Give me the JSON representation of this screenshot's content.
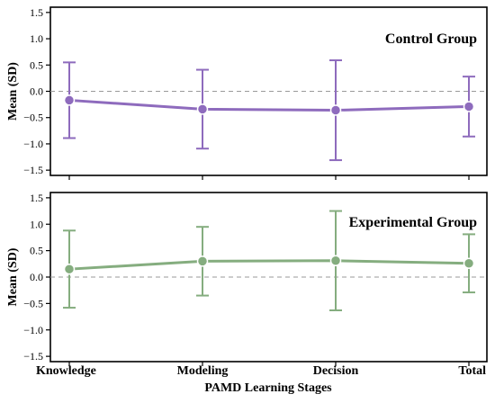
{
  "chart_data": [
    {
      "type": "line",
      "title": "Control Group",
      "ylabel": "Mean (SD)",
      "xlabel": "",
      "categories": [
        "Knowledge",
        "Modeling",
        "Decision",
        "Total"
      ],
      "ylim": [
        -1.6,
        1.6
      ],
      "yticks": [
        -1.5,
        -1.0,
        -0.5,
        0.0,
        0.5,
        1.0,
        1.5
      ],
      "ytick_labels": [
        "−1.5",
        "−1.0",
        "−0.5",
        "0.0",
        "0.5",
        "1.0",
        "1.5"
      ],
      "reference_line": 0,
      "color": "#8e6bbd",
      "series": [
        {
          "values": [
            -0.17,
            -0.34,
            -0.36,
            -0.29
          ],
          "sd": [
            0.72,
            0.75,
            0.95,
            0.57
          ]
        }
      ]
    },
    {
      "type": "line",
      "title": "Experimental Group",
      "ylabel": "Mean (SD)",
      "xlabel": "PAMD Learning Stages",
      "categories": [
        "Knowledge",
        "Modeling",
        "Decision",
        "Total"
      ],
      "ylim": [
        -1.6,
        1.6
      ],
      "yticks": [
        -1.5,
        -1.0,
        -0.5,
        0.0,
        0.5,
        1.0,
        1.5
      ],
      "ytick_labels": [
        "−1.5",
        "−1.0",
        "−0.5",
        "0.0",
        "0.5",
        "1.0",
        "1.5"
      ],
      "reference_line": 0,
      "color": "#85ad7f",
      "series": [
        {
          "values": [
            0.15,
            0.3,
            0.31,
            0.26
          ],
          "sd": [
            0.73,
            0.65,
            0.94,
            0.55
          ]
        }
      ]
    }
  ]
}
